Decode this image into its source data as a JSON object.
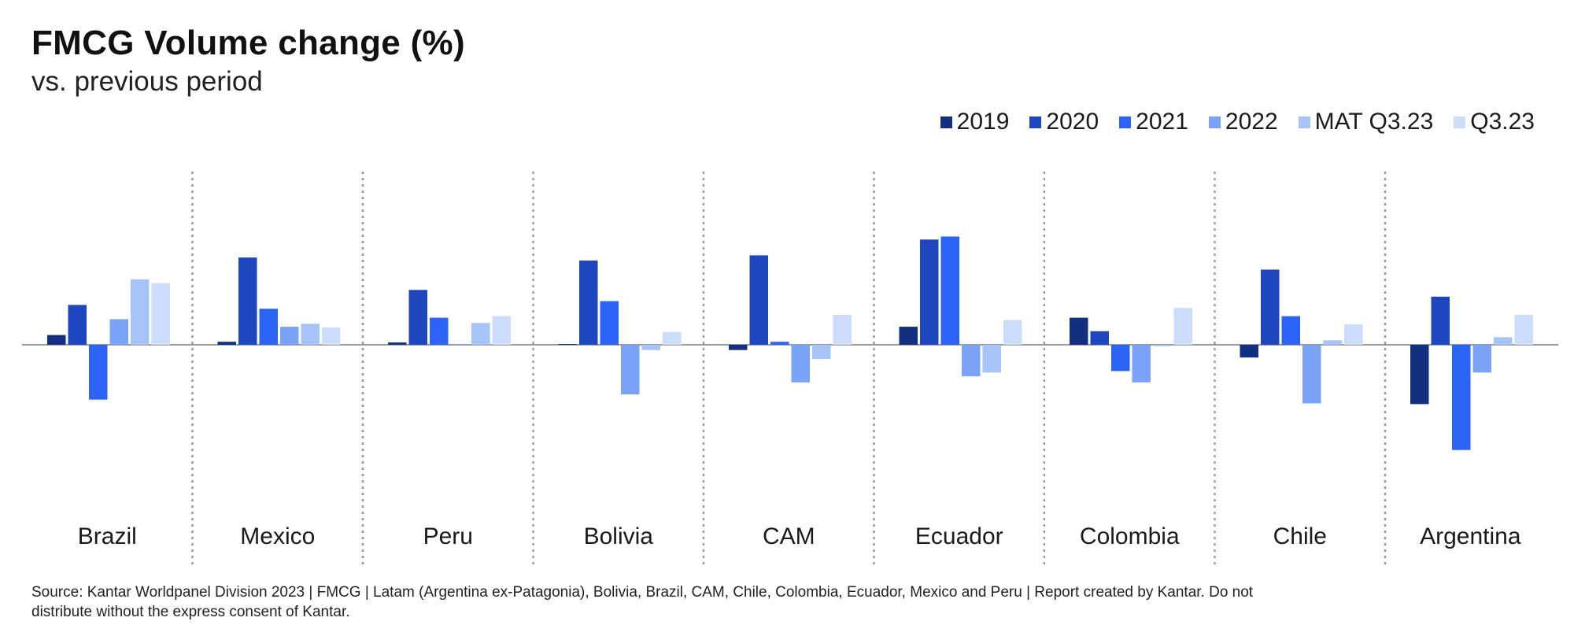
{
  "title": "FMCG Volume change (%)",
  "subtitle": "vs. previous period",
  "source": "Source: Kantar Worldpanel Division 2023 | FMCG | Latam (Argentina ex-Patagonia), Bolivia, Brazil, CAM, Chile, Colombia, Ecuador, Mexico and Peru | Report created by Kantar. Do not distribute without the express consent of Kantar.",
  "legend": [
    {
      "label": "2019",
      "color": "#132F80"
    },
    {
      "label": "2020",
      "color": "#1E46BE"
    },
    {
      "label": "2021",
      "color": "#2B63F5"
    },
    {
      "label": "2022",
      "color": "#7AA3F7"
    },
    {
      "label": "MAT Q3.23",
      "color": "#A6C3FA"
    },
    {
      "label": "Q3.23",
      "color": "#CCDCFC"
    }
  ],
  "chart_data": {
    "type": "bar",
    "categories": [
      "Brazil",
      "Mexico",
      "Peru",
      "Bolivia",
      "CAM",
      "Ecuador",
      "Colombia",
      "Chile",
      "Argentina"
    ],
    "series": [
      {
        "name": "2019",
        "values": [
          1.3,
          0.4,
          0.3,
          0.1,
          -0.7,
          2.4,
          3.6,
          -1.7,
          -7.9
        ]
      },
      {
        "name": "2020",
        "values": [
          5.3,
          11.6,
          7.3,
          11.2,
          11.9,
          14.0,
          1.8,
          10.0,
          6.4
        ]
      },
      {
        "name": "2021",
        "values": [
          -7.3,
          4.8,
          3.6,
          5.8,
          0.4,
          14.4,
          -3.5,
          3.8,
          -14.0
        ]
      },
      {
        "name": "2022",
        "values": [
          3.4,
          2.4,
          0.1,
          -6.6,
          -5.0,
          -4.2,
          -5.0,
          -7.8,
          -3.7
        ]
      },
      {
        "name": "MAT Q3.23",
        "values": [
          8.7,
          2.8,
          2.9,
          -0.7,
          -1.9,
          -3.7,
          -0.2,
          0.6,
          1.0
        ]
      },
      {
        "name": "Q3.23",
        "values": [
          8.2,
          2.3,
          3.8,
          1.7,
          4.0,
          3.3,
          4.9,
          2.7,
          4.0
        ]
      }
    ],
    "xlabel": "",
    "ylabel": "",
    "ylim": [
      -16,
      18
    ],
    "grid": false,
    "legend_position": "top-right"
  }
}
